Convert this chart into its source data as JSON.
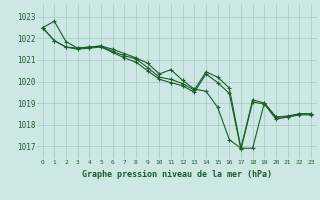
{
  "title": "Graphe pression niveau de la mer (hPa)",
  "background_color": "#cde8e4",
  "grid_color": "#a8cec8",
  "line_color": "#1a5e28",
  "xlim": [
    -0.5,
    23.5
  ],
  "ylim": [
    1016.4,
    1023.6
  ],
  "yticks": [
    1017,
    1018,
    1019,
    1020,
    1021,
    1022,
    1023
  ],
  "xticks": [
    0,
    1,
    2,
    3,
    4,
    5,
    6,
    7,
    8,
    9,
    10,
    11,
    12,
    13,
    14,
    15,
    16,
    17,
    18,
    19,
    20,
    21,
    22,
    23
  ],
  "series": [
    {
      "x": [
        0,
        1,
        2,
        3,
        4,
        5,
        6,
        7,
        8,
        9,
        10,
        11,
        12,
        13,
        14,
        15,
        16,
        17,
        18,
        19,
        20,
        21,
        22,
        23
      ],
      "y": [
        1022.5,
        1022.8,
        1021.85,
        1021.55,
        1021.6,
        1021.65,
        1021.5,
        1021.3,
        1021.1,
        1020.85,
        1020.35,
        1020.55,
        1020.05,
        1019.65,
        1019.55,
        1018.8,
        1017.3,
        1016.9,
        1016.9,
        1019.0,
        1018.35,
        1018.35,
        1018.5,
        1018.5
      ]
    },
    {
      "x": [
        0,
        1,
        2,
        3,
        4,
        5,
        6,
        7,
        8,
        9,
        10,
        11,
        12,
        13,
        14,
        15,
        16,
        17,
        18,
        19,
        20,
        21,
        22,
        23
      ],
      "y": [
        1022.5,
        1021.9,
        1021.6,
        1021.55,
        1021.6,
        1021.65,
        1021.4,
        1021.2,
        1021.05,
        1020.65,
        1020.2,
        1020.1,
        1019.9,
        1019.6,
        1020.45,
        1020.2,
        1019.7,
        1016.9,
        1019.15,
        1019.0,
        1018.35,
        1018.4,
        1018.5,
        1018.5
      ]
    },
    {
      "x": [
        0,
        1,
        2,
        3,
        4,
        5,
        6,
        7,
        8,
        9,
        10,
        11,
        12,
        13,
        14,
        15,
        16,
        17,
        18,
        19,
        20,
        21,
        22,
        23
      ],
      "y": [
        1022.5,
        1021.9,
        1021.6,
        1021.5,
        1021.55,
        1021.6,
        1021.35,
        1021.1,
        1020.9,
        1020.5,
        1020.1,
        1019.95,
        1019.8,
        1019.5,
        1020.35,
        1019.95,
        1019.45,
        1016.85,
        1019.05,
        1018.95,
        1018.25,
        1018.35,
        1018.45,
        1018.45
      ]
    }
  ]
}
